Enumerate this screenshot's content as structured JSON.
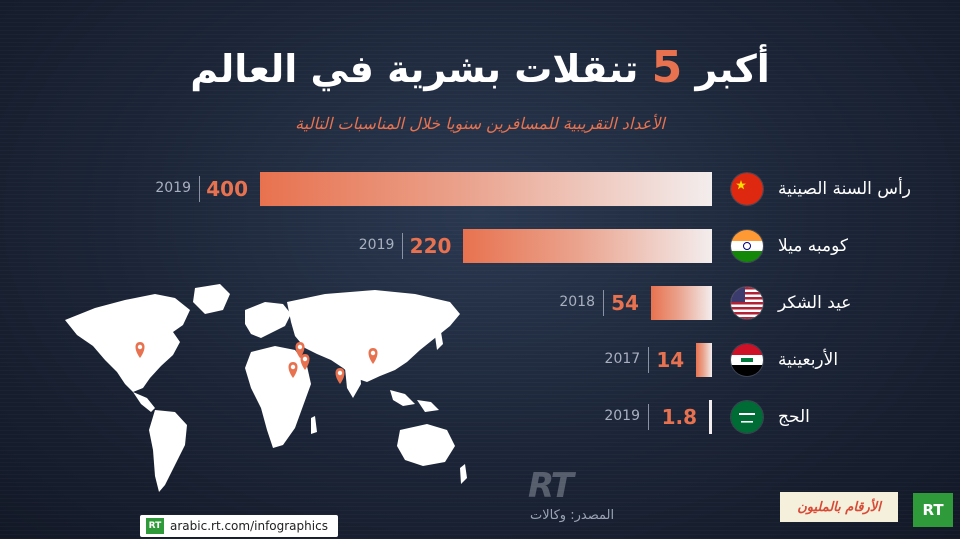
{
  "header": {
    "title_pre": "أكبر",
    "title_num": "5",
    "title_post": "تنقلات بشرية في العالم",
    "subtitle": "الأعداد التقريبية للمسافرين سنويا خلال المناسبات التالية"
  },
  "chart_data": {
    "type": "bar",
    "orientation": "horizontal",
    "title": "أكبر 5 تنقلات بشرية في العالم",
    "subtitle": "الأعداد التقريبية للمسافرين سنويا خلال المناسبات التالية",
    "categories": [
      "رأس السنة الصينية",
      "كومبه ميلا",
      "عيد الشكر",
      "الأربعينية",
      "الحج"
    ],
    "values": [
      400,
      220,
      54,
      14,
      1.8
    ],
    "value_labels": [
      "400",
      "220",
      "54",
      "14",
      "1.8"
    ],
    "years": [
      "2019",
      "2019",
      "2018",
      "2017",
      "2019"
    ],
    "flags": [
      "china-flag",
      "india-flag",
      "usa-flag",
      "iraq-flag",
      "saudi-flag"
    ],
    "xlim": [
      0,
      400
    ],
    "bar_colors": [
      "#e8724f",
      "#f3eded"
    ]
  },
  "map": {
    "color": "#ffffff",
    "pin_color": "#e8724f",
    "pin_count": 6
  },
  "footer": {
    "url": "arabic.rt.com/infographics",
    "source": "المصدر: وكالات",
    "watermark": "RT",
    "series_label": "الأرقام بالمليون",
    "logo": "RT",
    "mini_logo": "RT"
  },
  "colors": {
    "accent": "#e8724f",
    "background": "#1b2436",
    "rt_green": "#2f9a3a"
  }
}
